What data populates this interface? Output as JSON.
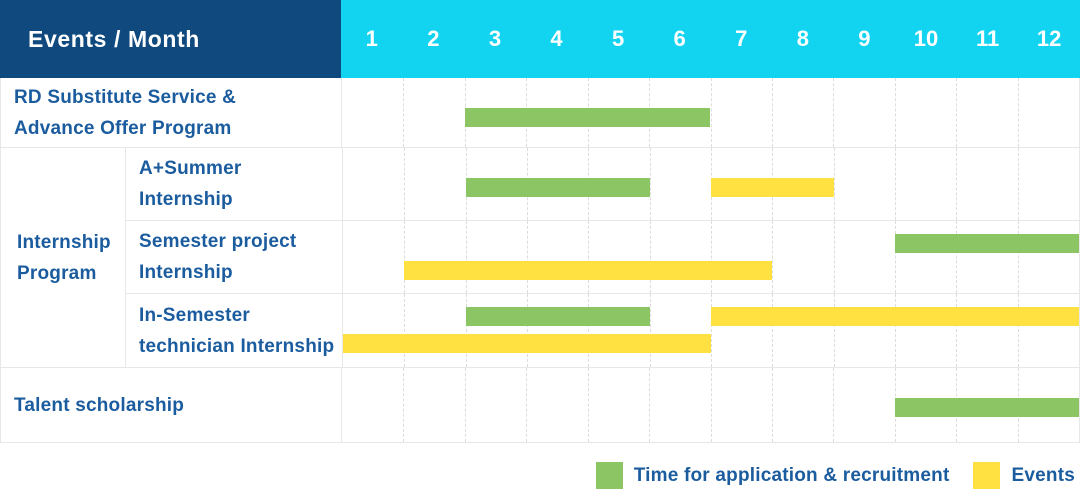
{
  "header": {
    "title": "Events / Month",
    "months": [
      "1",
      "2",
      "3",
      "4",
      "5",
      "6",
      "7",
      "8",
      "9",
      "10",
      "11",
      "12"
    ]
  },
  "colors": {
    "header_navy": "#10497E",
    "header_cyan": "#12D4F0",
    "label_blue": "#1B5C9F",
    "application_green": "#8CC664",
    "events_yellow": "#FFE242",
    "grid_dashed": "#dcdcdc",
    "row_border": "#e7e7e7"
  },
  "chart_data": {
    "type": "gantt",
    "title": "Events / Month",
    "x_axis": {
      "unit": "month",
      "range": [
        1,
        12
      ]
    },
    "series_legend": [
      {
        "series": "application",
        "label": "Time for application & recruitment",
        "color": "#8CC664"
      },
      {
        "series": "events",
        "label": "Events",
        "color": "#FFE242"
      }
    ],
    "months": [
      "1",
      "2",
      "3",
      "4",
      "5",
      "6",
      "7",
      "8",
      "9",
      "10",
      "11",
      "12"
    ],
    "rows": [
      {
        "id": "rd-substitute",
        "label_lines": [
          "RD Substitute Service &",
          "Advance Offer Program"
        ],
        "bars": [
          {
            "series": "application",
            "start": 3,
            "end": 6,
            "track": "single"
          }
        ]
      },
      {
        "id": "internship-program",
        "group_lines": [
          "Internship",
          "Program"
        ],
        "subrows": [
          {
            "id": "a-plus-summer",
            "label_lines": [
              "A+Summer",
              "Internship"
            ],
            "bars": [
              {
                "series": "application",
                "start": 3,
                "end": 5,
                "track": "single"
              },
              {
                "series": "events",
                "start": 7,
                "end": 8,
                "track": "single"
              }
            ]
          },
          {
            "id": "semester-project",
            "label_lines": [
              "Semester project",
              "Internship"
            ],
            "bars": [
              {
                "series": "application",
                "start": 10,
                "end": 12,
                "track": "top"
              },
              {
                "series": "events",
                "start": 2,
                "end": 7,
                "track": "bottom"
              }
            ]
          },
          {
            "id": "in-semester-technician",
            "label_lines": [
              "In-Semester",
              "technician Internship"
            ],
            "bars": [
              {
                "series": "application",
                "start": 3,
                "end": 5,
                "track": "top"
              },
              {
                "series": "events",
                "start": 7,
                "end": 12,
                "track": "top"
              },
              {
                "series": "events",
                "start": 1,
                "end": 6,
                "track": "bottom"
              }
            ]
          }
        ]
      },
      {
        "id": "talent-scholarship",
        "label_lines": [
          "Talent scholarship"
        ],
        "bars": [
          {
            "series": "application",
            "start": 10,
            "end": 12,
            "track": "single"
          }
        ]
      }
    ]
  },
  "legend": {
    "items": [
      {
        "series": "application",
        "label": "Time for application & recruitment"
      },
      {
        "series": "events",
        "label": "Events"
      }
    ]
  }
}
